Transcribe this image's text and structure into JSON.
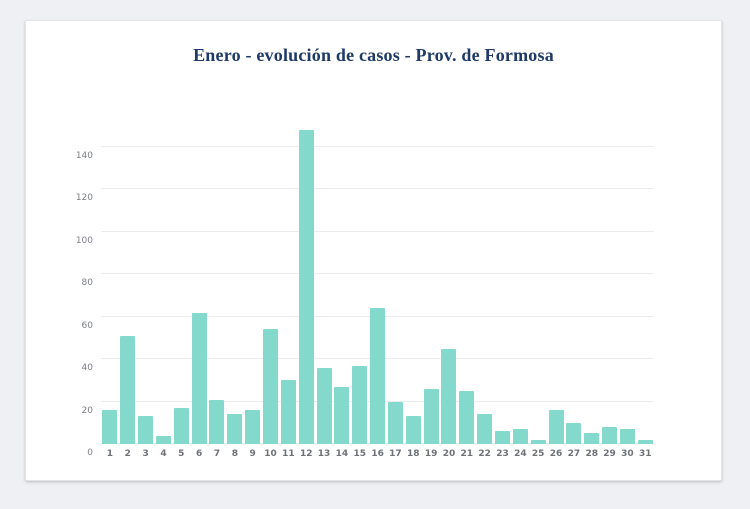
{
  "page": {
    "background_color": "#eef0f3",
    "card_background_color": "#ffffff",
    "title_color": "#1e3a68"
  },
  "chart_data": {
    "type": "bar",
    "title": "Enero - evolución de casos - Prov. de Formosa",
    "xlabel": "",
    "ylabel": "",
    "categories": [
      "1",
      "2",
      "3",
      "4",
      "5",
      "6",
      "7",
      "8",
      "9",
      "10",
      "11",
      "12",
      "13",
      "14",
      "15",
      "16",
      "17",
      "18",
      "19",
      "20",
      "21",
      "22",
      "23",
      "24",
      "25",
      "26",
      "27",
      "28",
      "29",
      "30",
      "31"
    ],
    "values": [
      16,
      51,
      13,
      4,
      17,
      62,
      21,
      14,
      16,
      54,
      30,
      148,
      36,
      27,
      37,
      64,
      20,
      13,
      26,
      45,
      25,
      14,
      6,
      7,
      2,
      16,
      10,
      5,
      8,
      7,
      2
    ],
    "ylim": [
      0,
      140
    ],
    "yticks": [
      0,
      20,
      40,
      60,
      80,
      100,
      120,
      140
    ],
    "grid": true,
    "legend": "none",
    "bar_color": "#82d9cc",
    "gridline_color": "#eaecef",
    "axis_label_color": "#6e7278"
  }
}
